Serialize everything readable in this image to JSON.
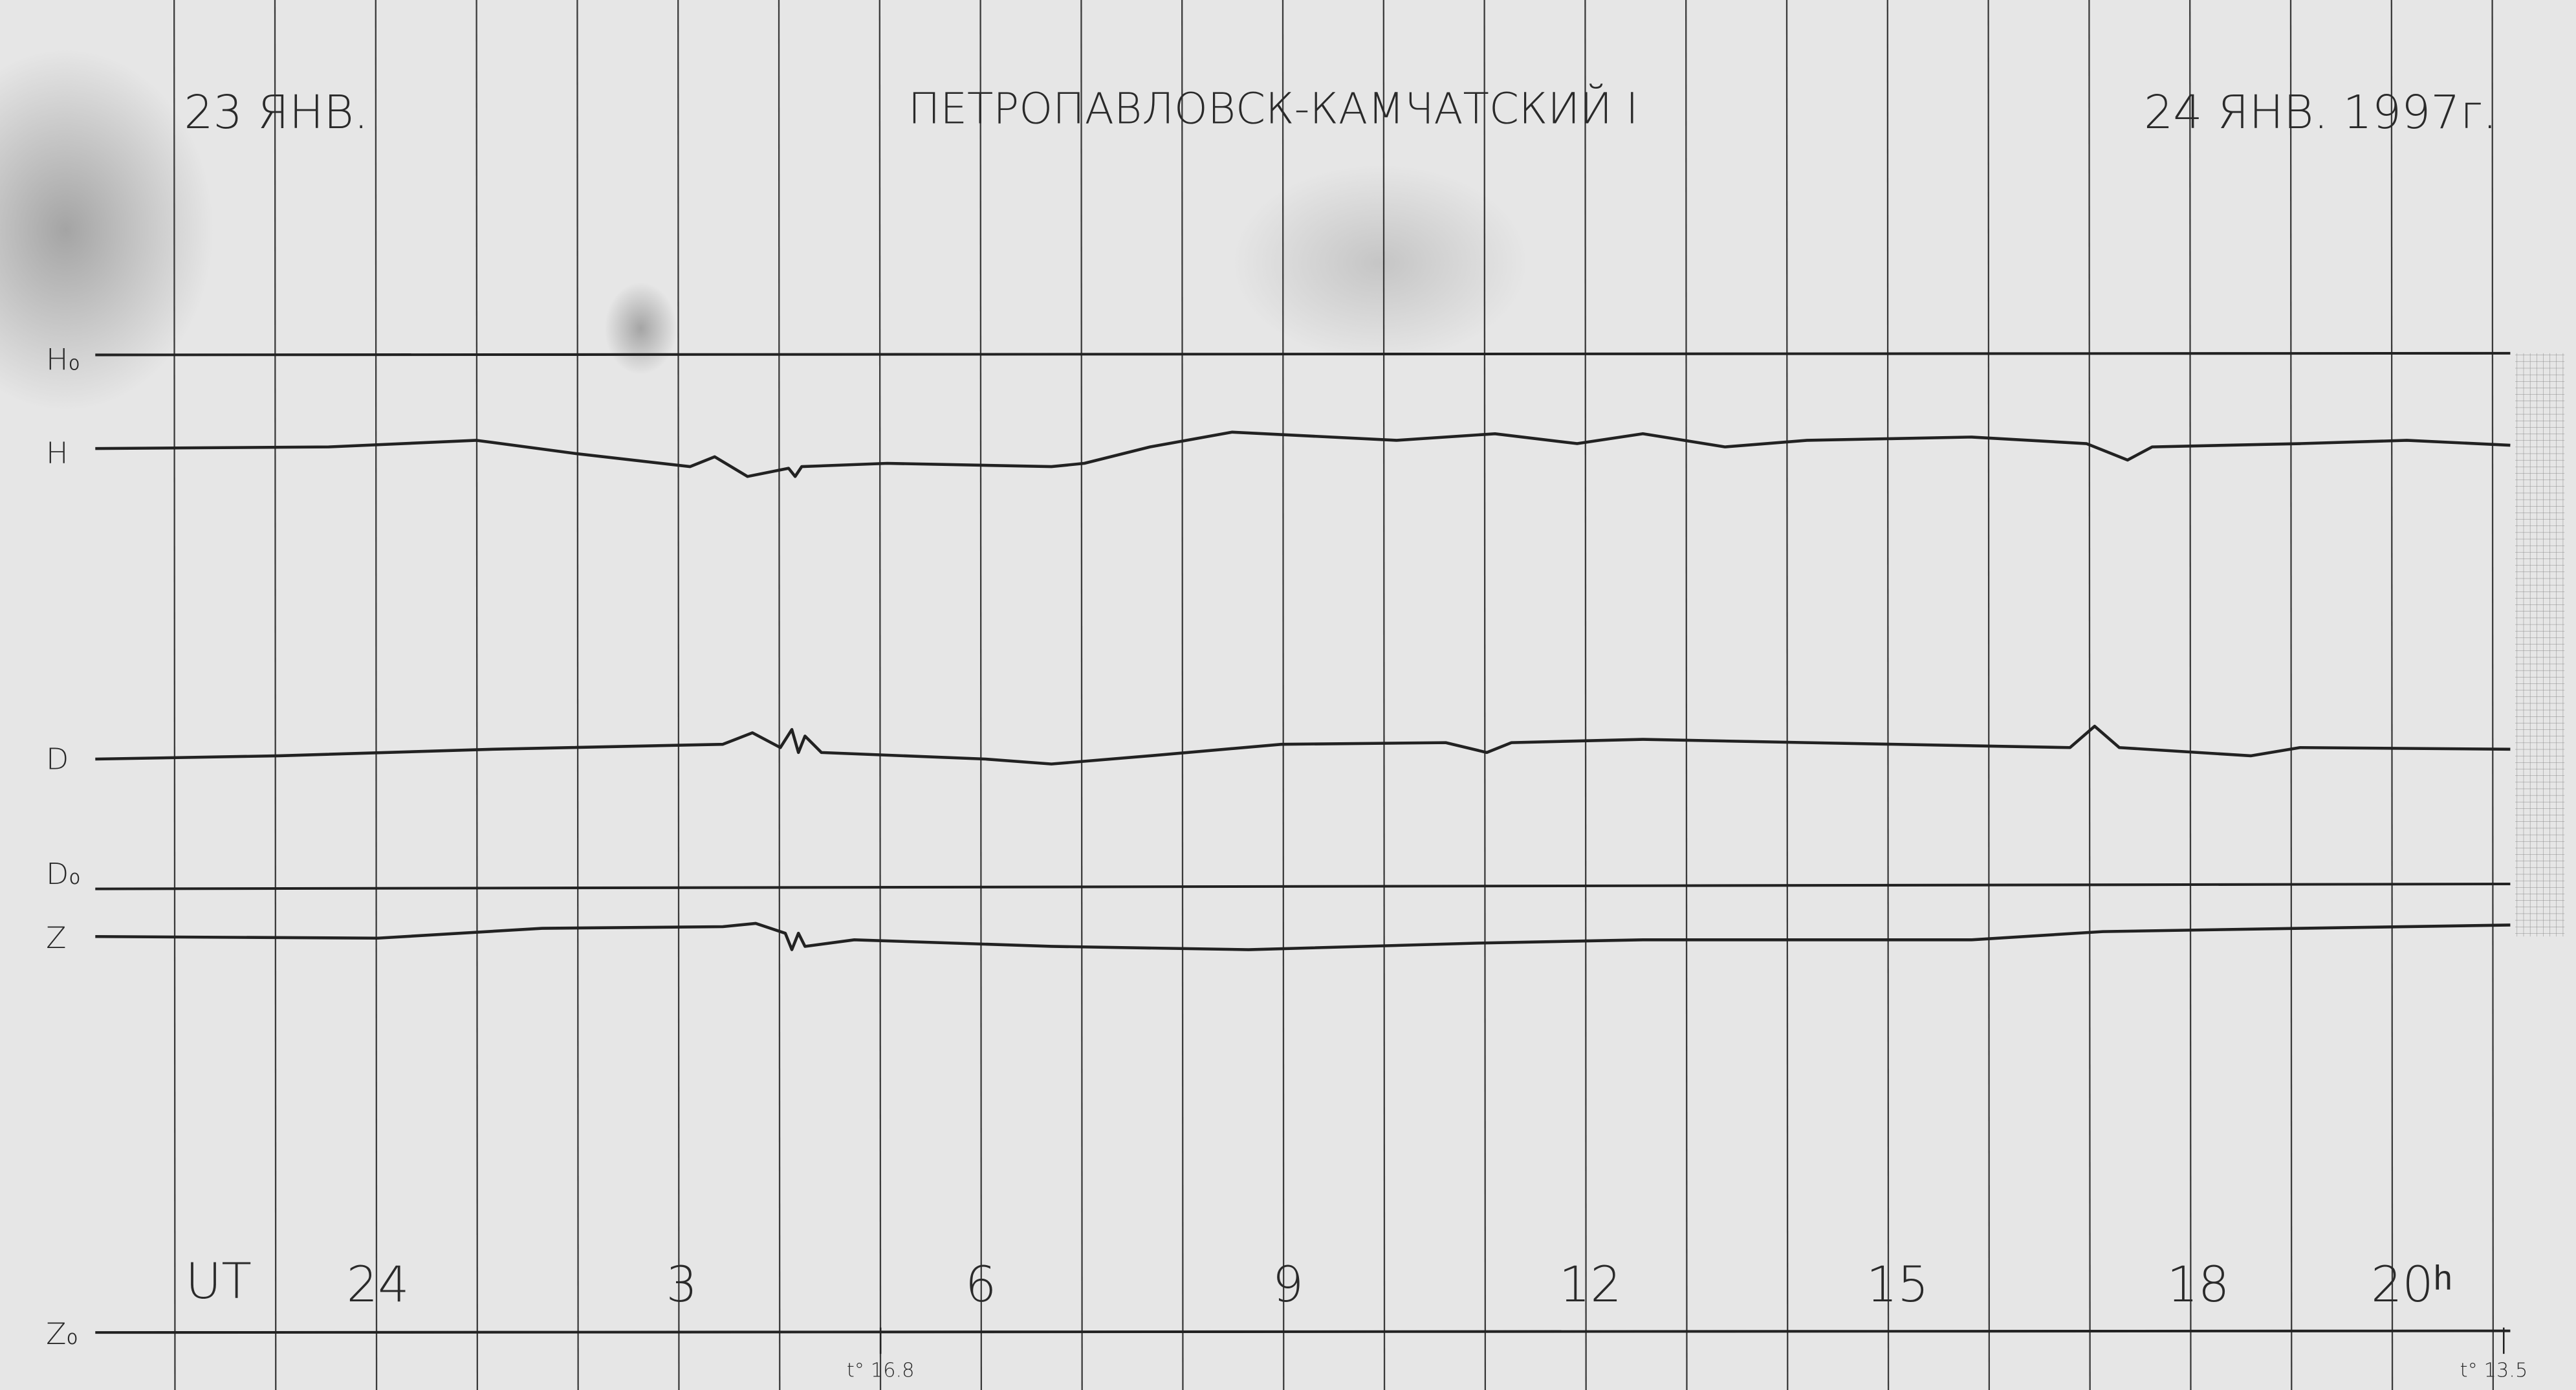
{
  "header": {
    "start_date": "23 ЯНВ.",
    "title": "ПЕТРОПАВЛОВСК-КАМЧАТСКИЙ I",
    "end_date": "24 ЯНВ. 1997г."
  },
  "traces": {
    "h_base": "H₀",
    "h": "H",
    "d": "D",
    "d_base": "D₀",
    "z": "Z",
    "z_base": "Z₀"
  },
  "time_axis": {
    "label": "UT",
    "hours": [
      "24",
      "3",
      "6",
      "9",
      "12",
      "15",
      "18",
      "20ʰ"
    ]
  },
  "temperatures": {
    "start": "t° 16.8",
    "end": "t° 13.5"
  }
}
